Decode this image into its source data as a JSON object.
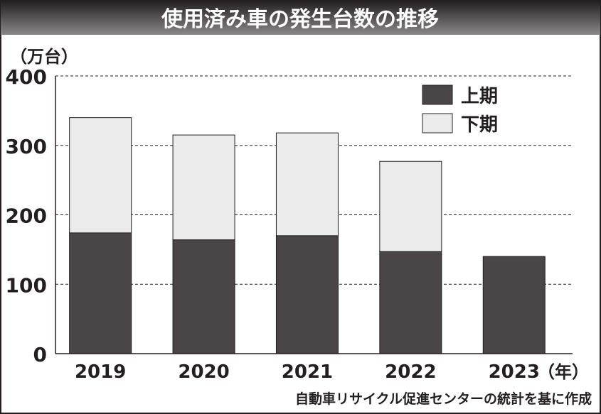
{
  "chart_data": {
    "type": "bar",
    "stacked": true,
    "title": "使用済み車の発生台数の推移",
    "ylabel": "（万台）",
    "xlabel": "（年）",
    "categories": [
      "2019",
      "2020",
      "2021",
      "2022",
      "2023"
    ],
    "series": [
      {
        "name": "上期",
        "color": "#4a4648",
        "values": [
          174,
          164,
          170,
          147,
          140
        ]
      },
      {
        "name": "下期",
        "color": "#ebebeb",
        "values": [
          166,
          151,
          148,
          130,
          null
        ]
      }
    ],
    "ylim": [
      0,
      400
    ],
    "yticks": [
      "0",
      "100",
      "200",
      "300",
      "400"
    ],
    "grid": true,
    "legend_position": "top-right",
    "source": "自動車リサイクル促進センターの統計を基に作成"
  }
}
